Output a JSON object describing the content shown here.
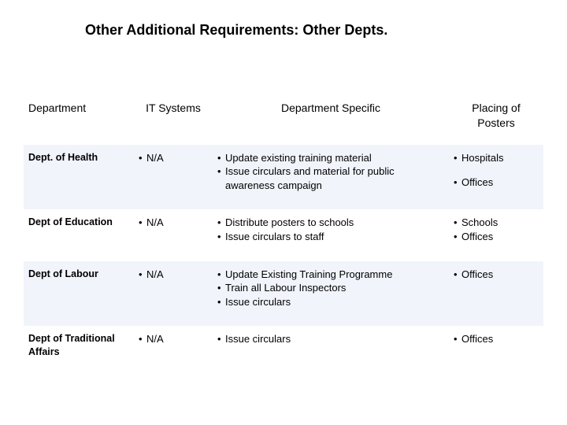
{
  "title": "Other Additional Requirements: Other Depts.",
  "headers": {
    "col0": "Department",
    "col1": "IT Systems",
    "col2": "Department Specific",
    "col3": "Placing of Posters"
  },
  "rows": [
    {
      "dept": "Dept. of Health",
      "it": "N/A",
      "spec": [
        "Update existing training material",
        "Issue circulars and material for public awareness campaign"
      ],
      "posters": [
        "Hospitals",
        "Offices"
      ],
      "poster_gap": true
    },
    {
      "dept": "Dept of Education",
      "it": "N/A",
      "spec": [
        "Distribute posters to schools",
        "Issue circulars to staff"
      ],
      "posters": [
        "Schools",
        "Offices"
      ]
    },
    {
      "dept": "Dept of Labour",
      "it": "N/A",
      "spec": [
        "Update Existing Training Programme",
        "Train all Labour Inspectors",
        "Issue circulars"
      ],
      "posters": [
        "Offices"
      ]
    },
    {
      "dept": "Dept of Traditional Affairs",
      "it": "N/A",
      "spec": [
        "Issue circulars"
      ],
      "posters": [
        "Offices"
      ]
    }
  ],
  "colors": {
    "stripe": "#f1f4fb",
    "background": "#ffffff",
    "text": "#000000"
  }
}
